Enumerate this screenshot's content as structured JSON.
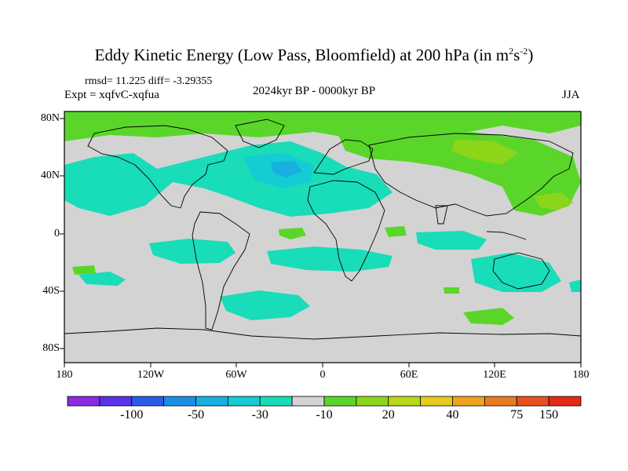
{
  "header": {
    "title_main": "Eddy Kinetic Energy (Low Pass, Bloomfield) at 200 hPa (in m",
    "title_sup1": "2",
    "title_mid": "s",
    "title_sup2": "-2",
    "title_end": ")",
    "rmsd_line": "rmsd= 11.225 diff= -3.29355",
    "expt_line": "Expt = xqfvC-xqfua",
    "period": "2024kyr BP - 0000kyr BP",
    "season": "JJA"
  },
  "map": {
    "projection": "cylindrical equidistant",
    "background_color": "#d3d3d3",
    "lat_labels": [
      "80N",
      "40N",
      "0",
      "40S",
      "80S"
    ],
    "lat_values": [
      80,
      40,
      0,
      -40,
      -80
    ],
    "lon_labels": [
      "180",
      "120W",
      "60W",
      "0",
      "60E",
      "120E",
      "180"
    ],
    "lon_values": [
      -180,
      -120,
      -60,
      0,
      60,
      120,
      180
    ],
    "lat_range": [
      -90,
      90
    ],
    "lon_range": [
      -180,
      180
    ]
  },
  "colorbar": {
    "colors": [
      "#8b2be2",
      "#5a32e8",
      "#2a5ce6",
      "#1d8ee6",
      "#17b0e0",
      "#14ccd4",
      "#19dcb8",
      "#d3d3d3",
      "#5ad62a",
      "#8cd61a",
      "#bcd618",
      "#e6cc1c",
      "#eaa41e",
      "#ea7a20",
      "#e85020",
      "#e22a14"
    ],
    "labels": [
      "-100",
      "-50",
      "-30",
      "-10",
      "20",
      "40",
      "75",
      "150"
    ],
    "label_boundaries": [
      2,
      4,
      6,
      8,
      10,
      12,
      14,
      15
    ]
  }
}
